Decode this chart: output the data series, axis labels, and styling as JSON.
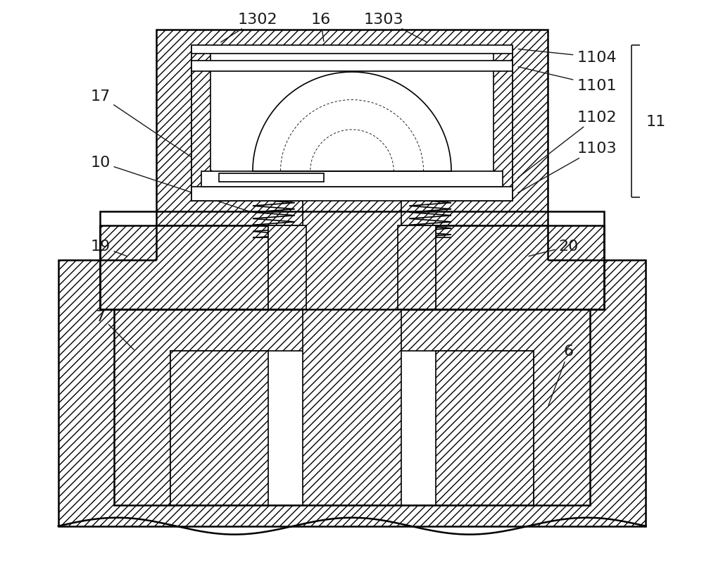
{
  "bg_color": "#ffffff",
  "line_color": "#000000",
  "figsize": [
    10.0,
    8.2
  ],
  "dpi": 100,
  "label_fontsize": 16,
  "label_color": "#1a1a1a"
}
